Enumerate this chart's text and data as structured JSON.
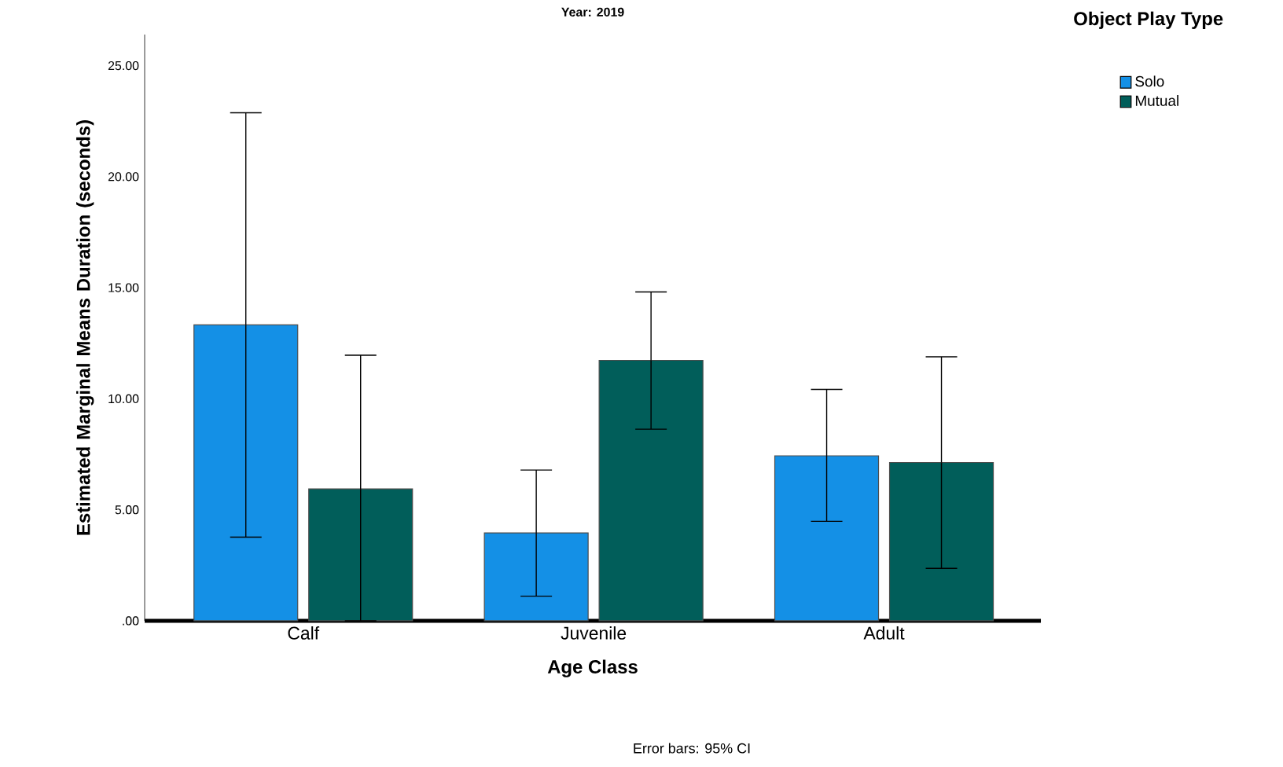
{
  "chart_data": {
    "type": "bar",
    "title": "Year: 2019",
    "xlabel": "Age Class",
    "ylabel": "Estimated Marginal Means Duration (seconds)",
    "legend_title": "Object Play Type",
    "legend": "top right",
    "categories": [
      "Calf",
      "Juvenile",
      "Adult"
    ],
    "series": [
      {
        "name": "Solo",
        "color": "#1490e6",
        "values": [
          13.33,
          3.96,
          7.43
        ],
        "errors": [
          [
            3.77,
            22.88
          ],
          [
            1.11,
            6.79
          ],
          [
            4.48,
            10.42
          ]
        ]
      },
      {
        "name": "Mutual",
        "color": "#015e5a",
        "values": [
          5.94,
          11.73,
          7.13
        ],
        "errors": [
          [
            0,
            11.96
          ],
          [
            8.63,
            14.81
          ],
          [
            2.36,
            11.89
          ]
        ]
      }
    ],
    "ylim": [
      0,
      26.4
    ],
    "yticks": [
      {
        "value": 0,
        "label": ".00"
      },
      {
        "value": 5,
        "label": "5.00"
      },
      {
        "value": 10,
        "label": "10.00"
      },
      {
        "value": 15,
        "label": "15.00"
      },
      {
        "value": 20,
        "label": "20.00"
      },
      {
        "value": 25,
        "label": "25.00"
      }
    ],
    "grid": false,
    "annotations": [
      "Error bars: 95% CI"
    ]
  }
}
